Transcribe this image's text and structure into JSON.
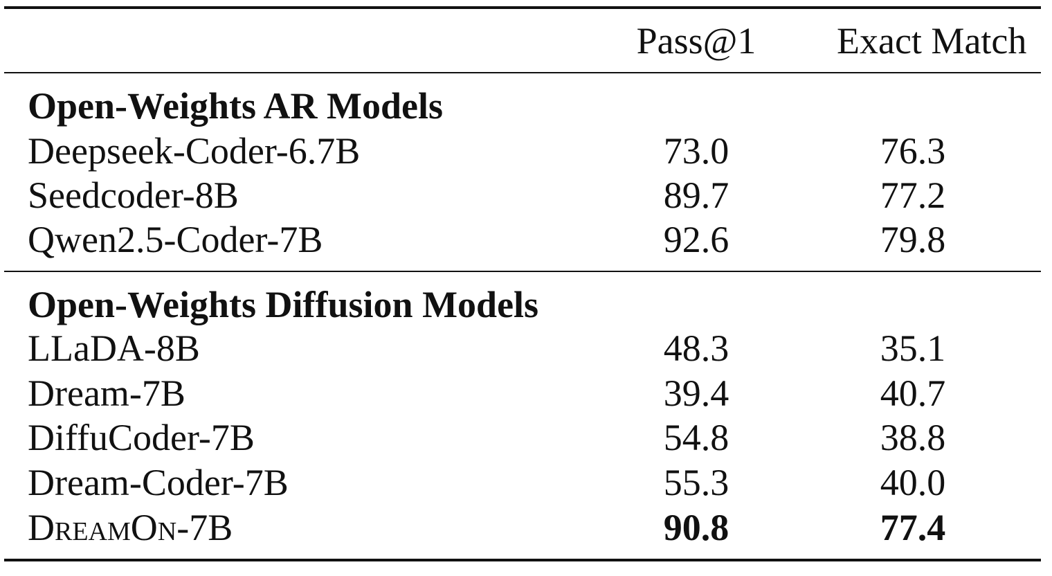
{
  "table": {
    "columns": [
      "Pass@1",
      "Exact Match"
    ],
    "groups": [
      {
        "title": "Open-Weights AR Models",
        "rows": [
          {
            "model": "Deepseek-Coder-6.7B",
            "pass1": "73.0",
            "exact": "76.3"
          },
          {
            "model": "Seedcoder-8B",
            "pass1": "89.7",
            "exact": "77.2"
          },
          {
            "model": "Qwen2.5-Coder-7B",
            "pass1": "92.6",
            "exact": "79.8"
          }
        ]
      },
      {
        "title": "Open-Weights Diffusion Models",
        "rows": [
          {
            "model": "LLaDA-8B",
            "pass1": "48.3",
            "exact": "35.1"
          },
          {
            "model": "Dream-7B",
            "pass1": "39.4",
            "exact": "40.7"
          },
          {
            "model": "DiffuCoder-7B",
            "pass1": "54.8",
            "exact": "38.8"
          },
          {
            "model": "Dream-Coder-7B",
            "pass1": "55.3",
            "exact": "40.0"
          },
          {
            "model": "DreamOn-7B",
            "pass1": "90.8",
            "exact": "77.4"
          }
        ]
      }
    ]
  }
}
